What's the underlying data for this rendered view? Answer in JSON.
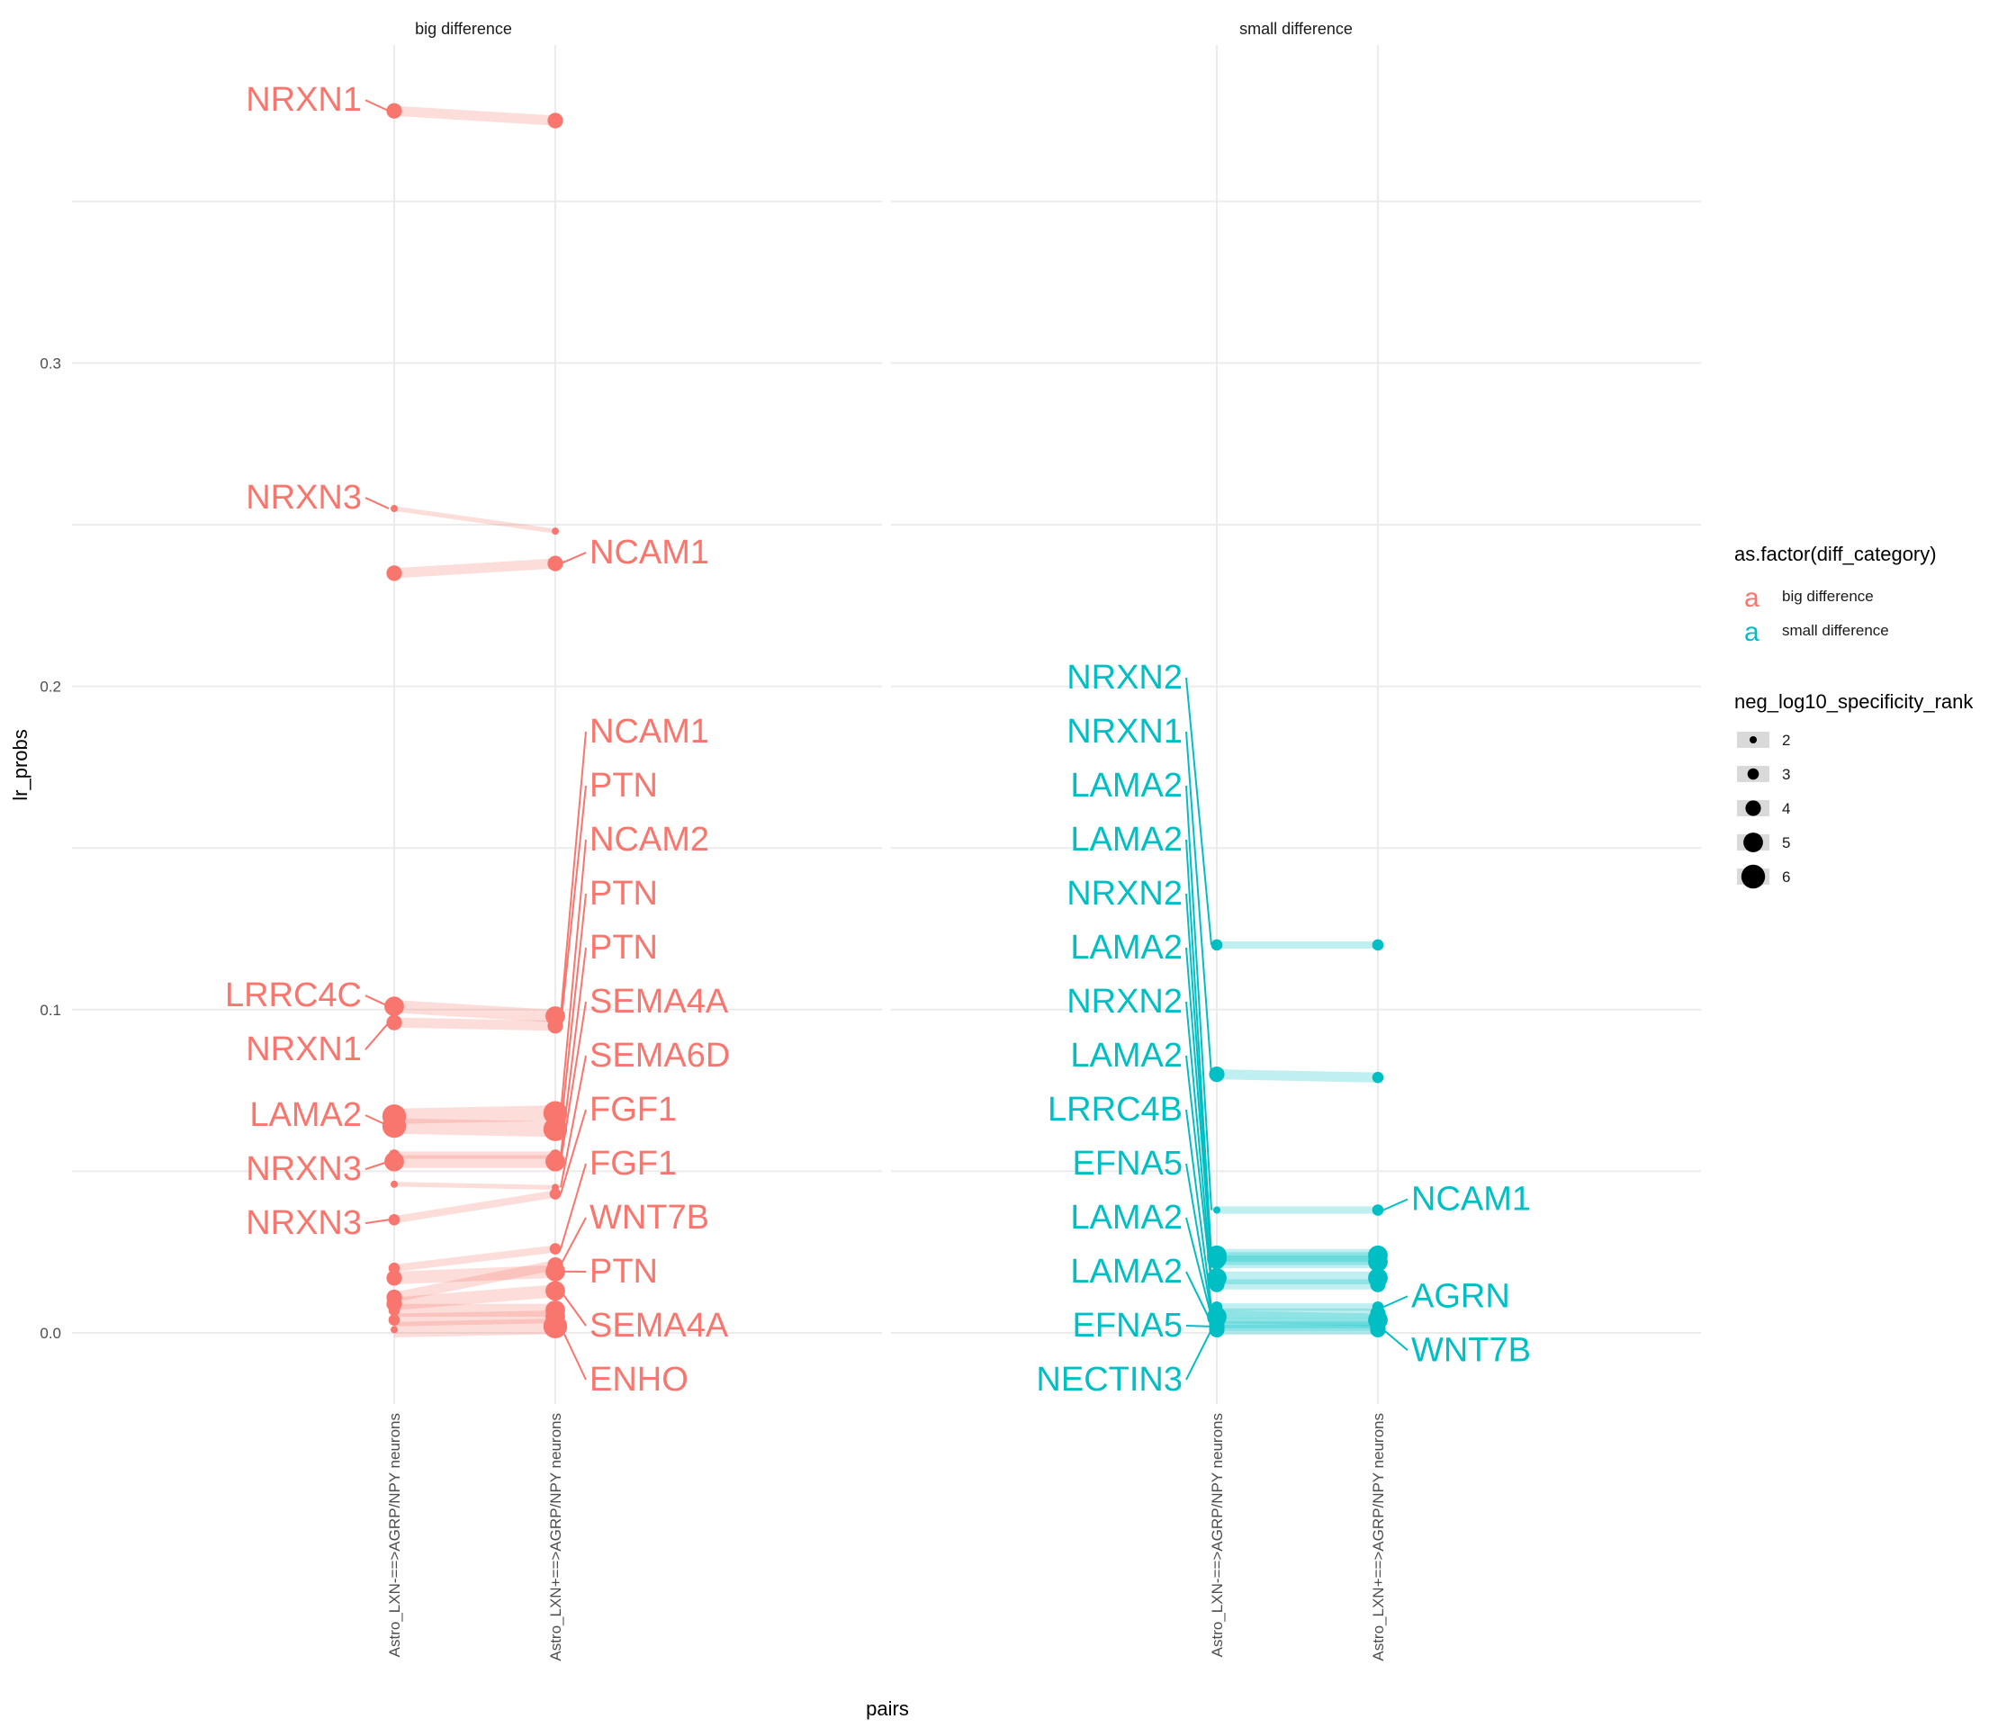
{
  "chart_data": {
    "type": "scatter",
    "xlabel": "pairs",
    "ylabel": "lr_probs",
    "ylim": [
      -0.02,
      0.39
    ],
    "yticks": [
      0.0,
      0.1,
      0.2,
      0.3
    ],
    "ytick_labels": [
      "0.0",
      "0.1",
      "0.2",
      "0.3"
    ],
    "categories": [
      "Astro_LXN-==>AGRP/NPY neurons",
      "Astro_LXN+==>AGRP/NPY neurons"
    ],
    "grid": true,
    "colors": {
      "big difference": "#F8766D",
      "small difference": "#00BFC4"
    },
    "panels": [
      {
        "title": "big difference",
        "category": "big difference",
        "pairs": [
          {
            "y1": 0.378,
            "y2": 0.375,
            "s1": 4,
            "s2": 4,
            "left_label": "NRXN1",
            "right_label": ""
          },
          {
            "y1": 0.255,
            "y2": 0.248,
            "s1": 2,
            "s2": 2,
            "left_label": "NRXN3",
            "right_label": ""
          },
          {
            "y1": 0.235,
            "y2": 0.238,
            "s1": 4,
            "s2": 4,
            "left_label": "",
            "right_label": "NCAM1"
          },
          {
            "y1": 0.101,
            "y2": 0.098,
            "s1": 5,
            "s2": 5,
            "left_label": "LRRC4C",
            "right_label": "NCAM1"
          },
          {
            "y1": 0.096,
            "y2": 0.095,
            "s1": 4,
            "s2": 4,
            "left_label": "NRXN1",
            "right_label": "PTN"
          },
          {
            "y1": 0.067,
            "y2": 0.068,
            "s1": 6,
            "s2": 6,
            "left_label": "",
            "right_label": "NCAM2"
          },
          {
            "y1": 0.064,
            "y2": 0.063,
            "s1": 6,
            "s2": 6,
            "left_label": "LAMA2",
            "right_label": "PTN"
          },
          {
            "y1": 0.055,
            "y2": 0.055,
            "s1": 3,
            "s2": 3,
            "left_label": "",
            "right_label": "PTN"
          },
          {
            "y1": 0.053,
            "y2": 0.053,
            "s1": 5,
            "s2": 5,
            "left_label": "NRXN3",
            "right_label": "SEMA4A"
          },
          {
            "y1": 0.046,
            "y2": 0.045,
            "s1": 2,
            "s2": 2,
            "left_label": "",
            "right_label": "SEMA6D"
          },
          {
            "y1": 0.035,
            "y2": 0.043,
            "s1": 3,
            "s2": 3,
            "left_label": "NRXN3",
            "right_label": "FGF1"
          },
          {
            "y1": 0.02,
            "y2": 0.026,
            "s1": 3,
            "s2": 3,
            "left_label": "",
            "right_label": "FGF1"
          },
          {
            "y1": 0.017,
            "y2": 0.019,
            "s1": 4,
            "s2": 5,
            "left_label": "",
            "right_label": "PTN"
          },
          {
            "y1": 0.011,
            "y2": 0.021,
            "s1": 4,
            "s2": 4,
            "left_label": "",
            "right_label": "WNT7B"
          },
          {
            "y1": 0.009,
            "y2": 0.013,
            "s1": 4,
            "s2": 5,
            "left_label": "",
            "right_label": "SEMA4A"
          },
          {
            "y1": 0.007,
            "y2": 0.007,
            "s1": 3,
            "s2": 5,
            "left_label": "",
            "right_label": ""
          },
          {
            "y1": 0.004,
            "y2": 0.005,
            "s1": 3,
            "s2": 5,
            "left_label": "",
            "right_label": ""
          },
          {
            "y1": 0.001,
            "y2": 0.002,
            "s1": 2,
            "s2": 6,
            "left_label": "",
            "right_label": "ENHO"
          }
        ]
      },
      {
        "title": "small difference",
        "category": "small difference",
        "pairs": [
          {
            "y1": 0.12,
            "y2": 0.12,
            "s1": 3,
            "s2": 3,
            "left_label": "NRXN2",
            "right_label": ""
          },
          {
            "y1": 0.08,
            "y2": 0.079,
            "s1": 4,
            "s2": 3,
            "left_label": "NRXN1",
            "right_label": ""
          },
          {
            "y1": 0.038,
            "y2": 0.038,
            "s1": 2,
            "s2": 3,
            "left_label": "LAMA2",
            "right_label": "NCAM1"
          },
          {
            "y1": 0.024,
            "y2": 0.024,
            "s1": 5,
            "s2": 5,
            "left_label": "LAMA2",
            "right_label": ""
          },
          {
            "y1": 0.023,
            "y2": 0.023,
            "s1": 5,
            "s2": 4,
            "left_label": "NRXN2",
            "right_label": ""
          },
          {
            "y1": 0.022,
            "y2": 0.022,
            "s1": 4,
            "s2": 5,
            "left_label": "LAMA2",
            "right_label": ""
          },
          {
            "y1": 0.017,
            "y2": 0.017,
            "s1": 5,
            "s2": 5,
            "left_label": "NRXN2",
            "right_label": ""
          },
          {
            "y1": 0.015,
            "y2": 0.015,
            "s1": 4,
            "s2": 4,
            "left_label": "LAMA2",
            "right_label": ""
          },
          {
            "y1": 0.008,
            "y2": 0.008,
            "s1": 3,
            "s2": 3,
            "left_label": "LRRC4B",
            "right_label": "AGRN"
          },
          {
            "y1": 0.006,
            "y2": 0.006,
            "s1": 4,
            "s2": 4,
            "left_label": "EFNA5",
            "right_label": ""
          },
          {
            "y1": 0.005,
            "y2": 0.004,
            "s1": 5,
            "s2": 5,
            "left_label": "LAMA2",
            "right_label": ""
          },
          {
            "y1": 0.003,
            "y2": 0.003,
            "s1": 4,
            "s2": 4,
            "left_label": "LAMA2",
            "right_label": ""
          },
          {
            "y1": 0.002,
            "y2": 0.002,
            "s1": 4,
            "s2": 4,
            "left_label": "EFNA5",
            "right_label": ""
          },
          {
            "y1": 0.001,
            "y2": 0.001,
            "s1": 4,
            "s2": 4,
            "left_label": "NECTIN3",
            "right_label": "WNT7B"
          }
        ]
      }
    ],
    "legend": {
      "placement": "right",
      "color_title": "as.factor(diff_category)",
      "color_items": [
        {
          "label": "big difference",
          "color": "#F8766D",
          "glyph": "a"
        },
        {
          "label": "small difference",
          "color": "#00BFC4",
          "glyph": "a"
        }
      ],
      "size_title": "neg_log10_specificity_rank",
      "size_items": [
        {
          "label": "2",
          "value": 2
        },
        {
          "label": "3",
          "value": 3
        },
        {
          "label": "4",
          "value": 4
        },
        {
          "label": "5",
          "value": 5
        },
        {
          "label": "6",
          "value": 6
        }
      ]
    }
  }
}
